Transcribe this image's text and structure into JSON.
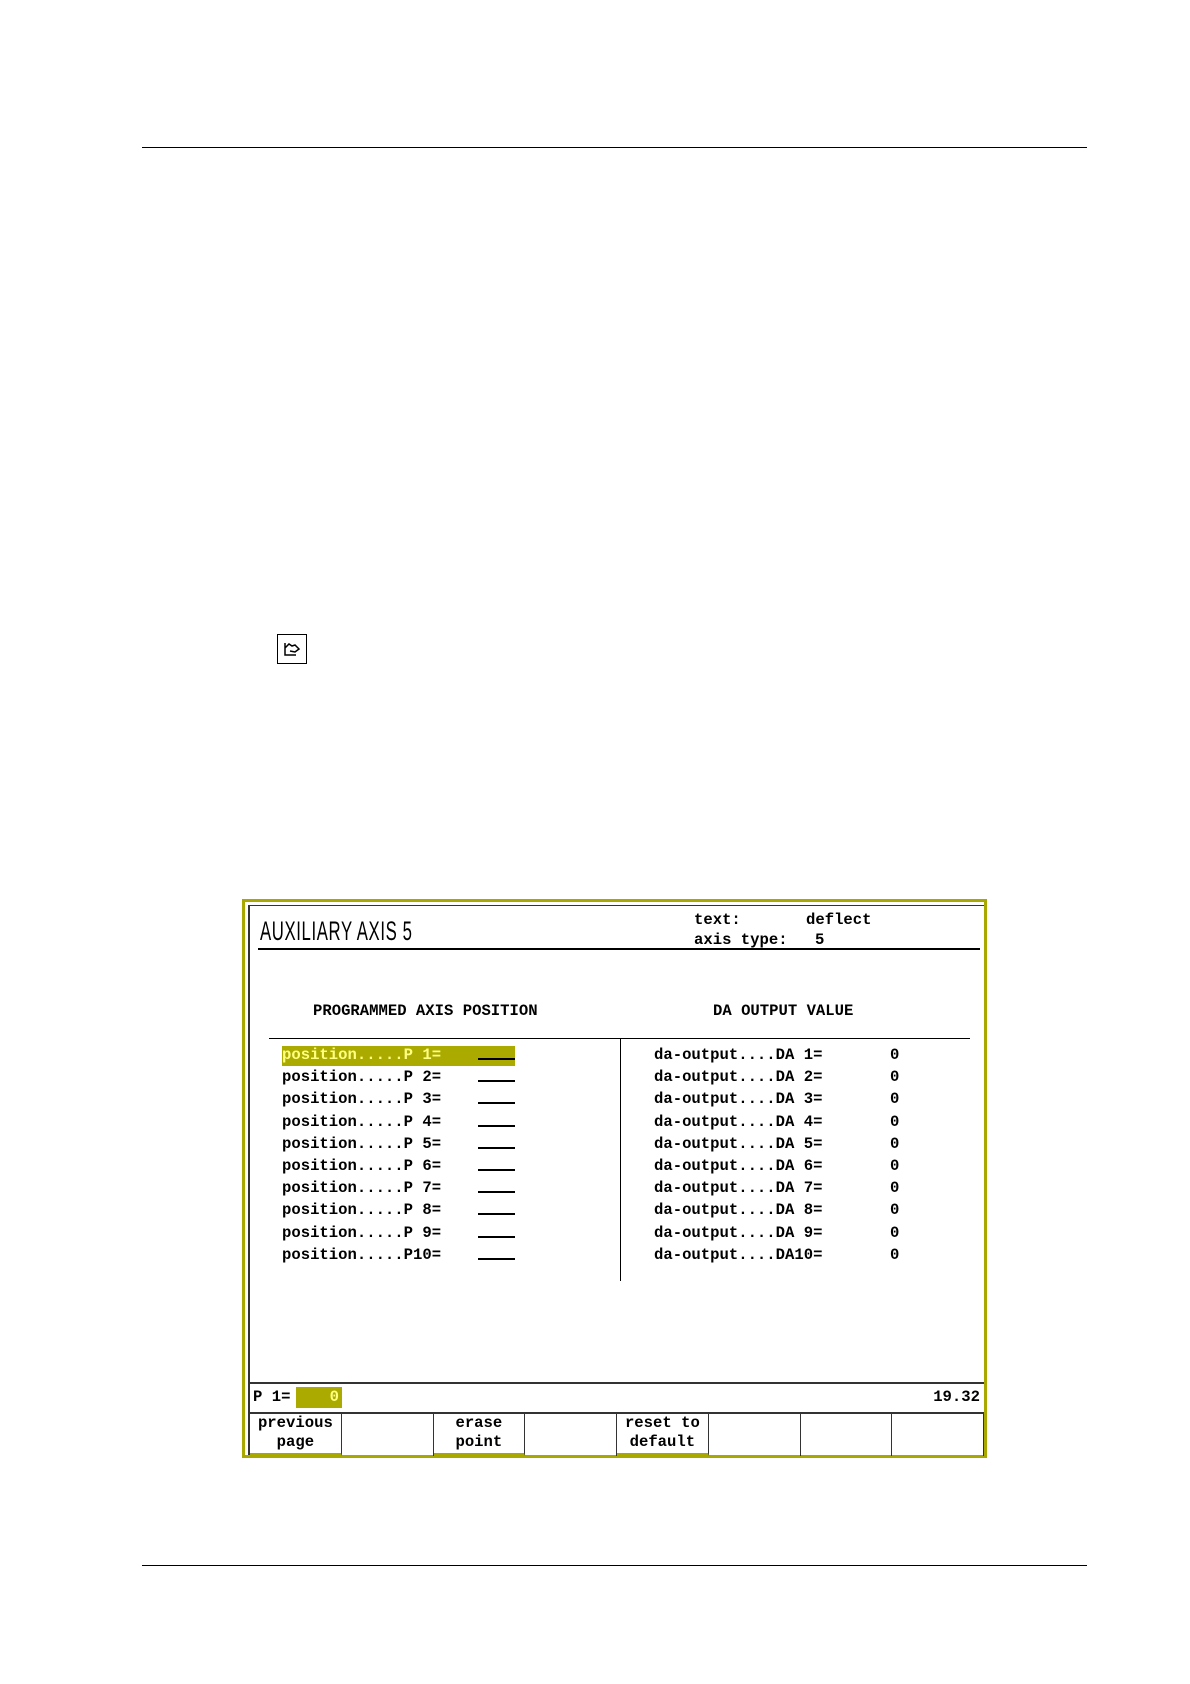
{
  "screen": {
    "title": "AUXILIARY AXIS 5",
    "text_label": "text:",
    "text_value": "deflect",
    "axis_type_label": "axis type:",
    "axis_type_value": "5",
    "left_header": "PROGRAMMED AXIS POSITION",
    "right_header": "DA OUTPUT VALUE",
    "positions": [
      "position.....P 1=",
      "position.....P 2=",
      "position.....P 3=",
      "position.....P 4=",
      "position.....P 5=",
      "position.....P 6=",
      "position.....P 7=",
      "position.....P 8=",
      "position.....P 9=",
      "position.....P10="
    ],
    "outputs": [
      {
        "label": "da-output....DA 1=",
        "value": "0"
      },
      {
        "label": "da-output....DA 2=",
        "value": "0"
      },
      {
        "label": "da-output....DA 3=",
        "value": "0"
      },
      {
        "label": "da-output....DA 4=",
        "value": "0"
      },
      {
        "label": "da-output....DA 5=",
        "value": "0"
      },
      {
        "label": "da-output....DA 6=",
        "value": "0"
      },
      {
        "label": "da-output....DA 7=",
        "value": "0"
      },
      {
        "label": "da-output....DA 8=",
        "value": "0"
      },
      {
        "label": "da-output....DA 9=",
        "value": "0"
      },
      {
        "label": "da-output....DA10=",
        "value": "0"
      }
    ],
    "status": {
      "input_label": "P 1=",
      "input_value": "0",
      "time": "19.32"
    },
    "buttons": [
      [
        "previous",
        "page"
      ],
      [
        "",
        ""
      ],
      [
        "erase",
        "point"
      ],
      [
        "",
        ""
      ],
      [
        "reset to",
        "default"
      ],
      [
        "",
        ""
      ],
      [
        "",
        ""
      ],
      [
        "",
        ""
      ]
    ],
    "accent": "#a8a800"
  },
  "icons": {
    "margin_icon": "note-hand-icon"
  }
}
